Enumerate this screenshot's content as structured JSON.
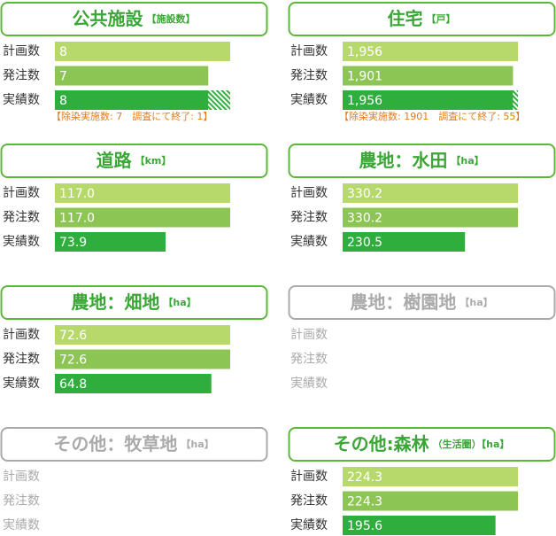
{
  "chart_data": [
    {
      "type": "bar",
      "title": "公共施設",
      "unit": "【施設数】",
      "color": "#5cb83a",
      "text_color": "#333333",
      "colors": [
        "#b7d96b",
        "#8dc555",
        "#2fae3e"
      ],
      "categories": [
        "計画数",
        "発注数",
        "実績数"
      ],
      "values": [
        8,
        7,
        8
      ],
      "segments": [
        7,
        1
      ],
      "note": "【除染実施数: 7　調査にて終了: 1】"
    },
    {
      "type": "bar",
      "title": "住宅",
      "unit": "【戸】",
      "color": "#5cb83a",
      "text_color": "#333333",
      "colors": [
        "#b7d96b",
        "#8dc555",
        "#2fae3e"
      ],
      "categories": [
        "計画数",
        "発注数",
        "実績数"
      ],
      "values": [
        1956,
        1901,
        1956
      ],
      "value_labels": [
        "1,956",
        "1,901",
        "1,956"
      ],
      "segments": [
        1901,
        55
      ],
      "note": "【除染実施数: 1901　調査にて終了: 55】"
    },
    {
      "type": "bar",
      "title": "道路",
      "unit": "【km】",
      "color": "#5cb83a",
      "text_color": "#333333",
      "colors": [
        "#b7d96b",
        "#8dc555",
        "#2fae3e"
      ],
      "categories": [
        "計画数",
        "発注数",
        "実績数"
      ],
      "values": [
        117.0,
        117.0,
        73.9
      ],
      "value_labels": [
        "117.0",
        "117.0",
        "73.9"
      ]
    },
    {
      "type": "bar",
      "title": "農地：水田",
      "unit": "【ha】",
      "color": "#5cb83a",
      "text_color": "#333333",
      "colors": [
        "#b7d96b",
        "#8dc555",
        "#2fae3e"
      ],
      "categories": [
        "計画数",
        "発注数",
        "実績数"
      ],
      "values": [
        330.2,
        330.2,
        230.5
      ]
    },
    {
      "type": "bar",
      "title": "農地：畑地",
      "unit": "【ha】",
      "color": "#5cb83a",
      "text_color": "#333333",
      "colors": [
        "#b7d96b",
        "#8dc555",
        "#2fae3e"
      ],
      "categories": [
        "計画数",
        "発注数",
        "実績数"
      ],
      "values": [
        72.6,
        72.6,
        64.8
      ]
    },
    {
      "type": "bar",
      "title": "農地：樹園地",
      "unit": "【ha】",
      "color": "#aaaaaa",
      "text_color": "#aaaaaa",
      "categories": [
        "計画数",
        "発注数",
        "実績数"
      ]
    },
    {
      "type": "bar",
      "title": "その他：牧草地",
      "unit": "【ha】",
      "color": "#aaaaaa",
      "text_color": "#aaaaaa",
      "categories": [
        "計画数",
        "発注数",
        "実績数"
      ]
    },
    {
      "type": "bar",
      "title": "その他:森林",
      "unit": "（生活圏）【ha】",
      "color": "#5cb83a",
      "text_color": "#333333",
      "colors": [
        "#b7d96b",
        "#8dc555",
        "#2fae3e"
      ],
      "categories": [
        "計画数",
        "発注数",
        "実績数"
      ],
      "values": [
        224.3,
        224.3,
        195.6
      ]
    }
  ]
}
